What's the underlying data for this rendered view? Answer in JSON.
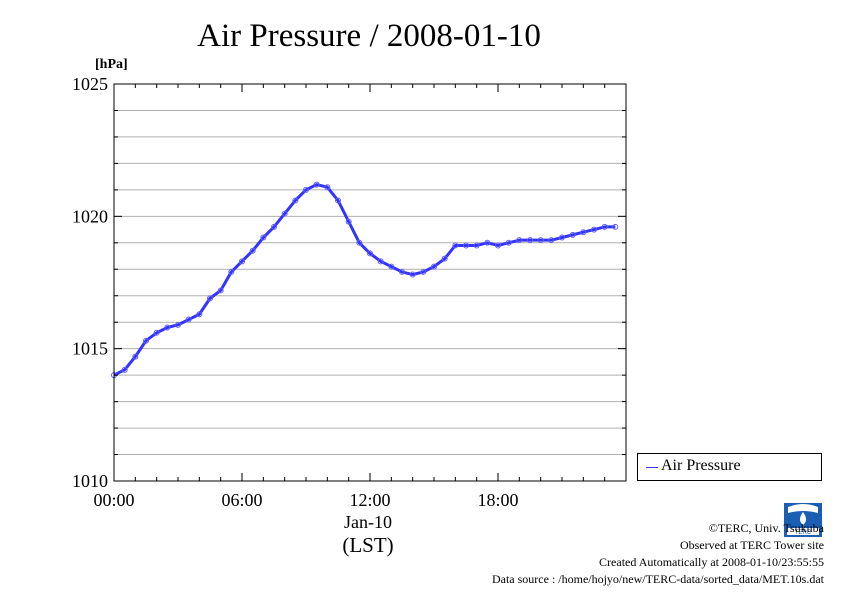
{
  "chart_data": {
    "type": "line",
    "title": "Air Pressure / 2008-01-10",
    "ylabel": "[hPa]",
    "ylim": [
      1010,
      1025
    ],
    "y_ticks": [
      "1010",
      "1015",
      "1020",
      "1025"
    ],
    "xlim_hours": [
      0,
      24
    ],
    "x_ticks": [
      "00:00",
      "06:00",
      "12:00",
      "18:00"
    ],
    "x_date_label": "Jan-10",
    "x_unit_label": "(LST)",
    "grid": true,
    "legend_position": "right",
    "series": [
      {
        "name": "Air Pressure",
        "color": "#3333ff",
        "x_hours": [
          0,
          0.5,
          1,
          1.5,
          2,
          2.5,
          3,
          3.5,
          4,
          4.5,
          5,
          5.5,
          6,
          6.5,
          7,
          7.5,
          8,
          8.5,
          9,
          9.5,
          10,
          10.5,
          11,
          11.5,
          12,
          12.5,
          13,
          13.5,
          14,
          14.5,
          15,
          15.5,
          16,
          16.5,
          17,
          17.5,
          18,
          18.5,
          19,
          19.5,
          20,
          20.5,
          21,
          21.5,
          22,
          22.5,
          23,
          23.5
        ],
        "values": [
          1014.0,
          1014.2,
          1014.7,
          1015.3,
          1015.6,
          1015.8,
          1015.9,
          1016.1,
          1016.3,
          1016.9,
          1017.2,
          1017.9,
          1018.3,
          1018.7,
          1019.2,
          1019.6,
          1020.1,
          1020.6,
          1021.0,
          1021.2,
          1021.1,
          1020.6,
          1019.8,
          1019.0,
          1018.6,
          1018.3,
          1018.1,
          1017.9,
          1017.8,
          1017.9,
          1018.1,
          1018.4,
          1018.9,
          1018.9,
          1018.9,
          1019.0,
          1018.9,
          1019.0,
          1019.1,
          1019.1,
          1019.1,
          1019.1,
          1019.2,
          1019.3,
          1019.4,
          1019.5,
          1019.6,
          1019.6
        ]
      }
    ]
  },
  "credits": {
    "copyright": "©TERC, Univ. Tsukuba",
    "observed": "Observed at TERC Tower site",
    "created": "Created Automatically at 2008-01-10/23:55:55",
    "source": "Data source : /home/hojyo/new/TERC-data/sorted_data/MET.10s.dat",
    "logo_text": "TERC"
  }
}
